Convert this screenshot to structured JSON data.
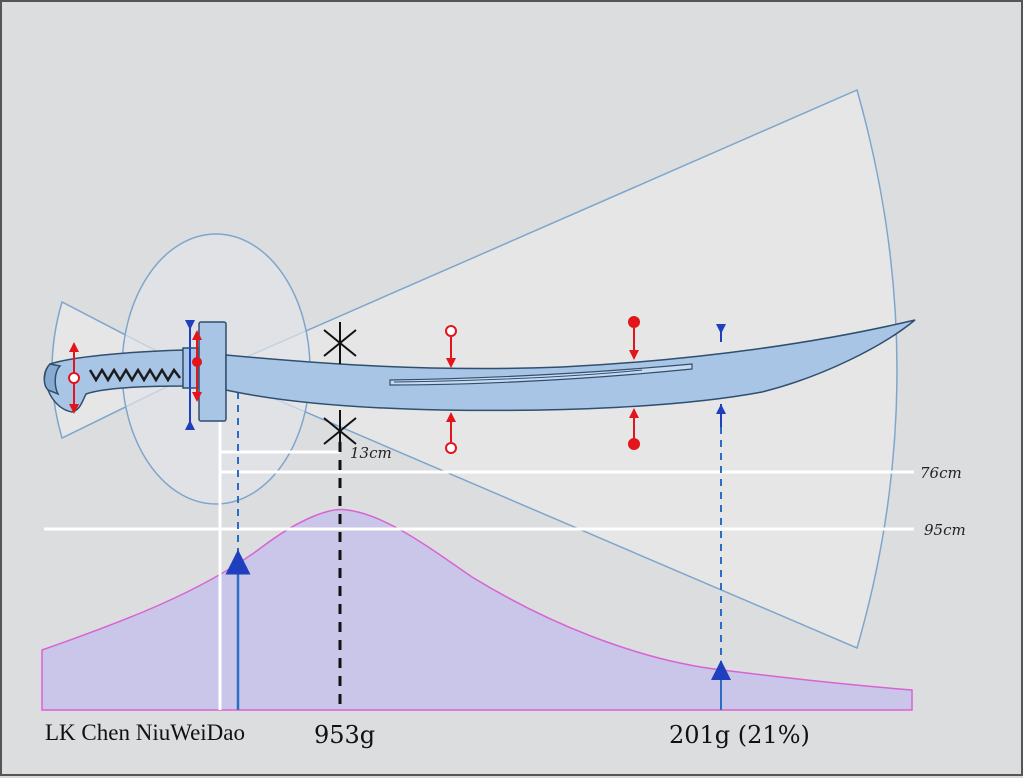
{
  "title": "LK Chen NiuWeiDao",
  "mass_label": "953g",
  "tip_mass_label": "201g (21%)",
  "dimension_labels": {
    "pob": "13cm",
    "blade_length": "76cm",
    "total_length": "95cm"
  },
  "colors": {
    "background": "#dcdddf",
    "sector_fill": "#e6e6e6",
    "sector_stroke": "#7ea6cc",
    "blade_fill": "#a9c5e5",
    "blade_stroke": "#2f4f6f",
    "curve_fill": "#c9c6e9",
    "curve_stroke": "#d963d3",
    "red_marker": "#e2141c",
    "blue_marker": "#1f3fbf",
    "dash_blue": "#2b6cc4",
    "white_line": "#ffffff"
  },
  "icons": [
    "pivot-cross-icon",
    "red-force-arrow-icon",
    "blue-node-arrow-icon"
  ]
}
